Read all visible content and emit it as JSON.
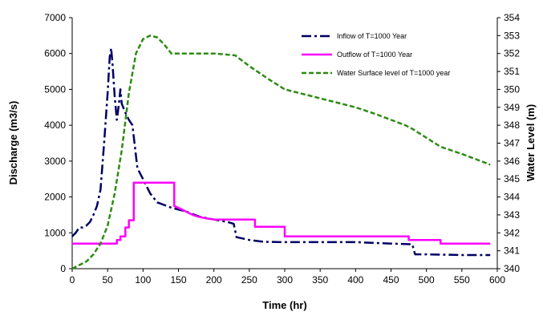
{
  "chart_data": {
    "type": "line",
    "xlabel": "Time (hr)",
    "ylabel": "Discharge (m3/s)",
    "y2label": "Water Level (m)",
    "xlim": [
      0,
      600
    ],
    "ylim": [
      0,
      7000
    ],
    "y2lim": [
      340,
      354
    ],
    "xticks": [
      "0",
      "50",
      "100",
      "150",
      "200",
      "250",
      "300",
      "350",
      "400",
      "450",
      "500",
      "550",
      "600"
    ],
    "yticks": [
      "0",
      "1000",
      "2000",
      "3000",
      "4000",
      "5000",
      "6000",
      "7000"
    ],
    "y2ticks": [
      "340",
      "341",
      "342",
      "343",
      "344",
      "345",
      "346",
      "347",
      "348",
      "349",
      "350",
      "351",
      "352",
      "353",
      "354"
    ],
    "grid": false,
    "legend_position": "top-right",
    "series": [
      {
        "name": "Inflow of T=1000 Year",
        "axis": "left",
        "color": "#000066",
        "style": "dashdot",
        "points": [
          [
            0,
            900
          ],
          [
            5,
            1000
          ],
          [
            10,
            1150
          ],
          [
            15,
            1150
          ],
          [
            20,
            1200
          ],
          [
            25,
            1300
          ],
          [
            30,
            1500
          ],
          [
            35,
            1750
          ],
          [
            40,
            2200
          ],
          [
            45,
            3500
          ],
          [
            50,
            4900
          ],
          [
            53,
            5900
          ],
          [
            55,
            6150
          ],
          [
            57,
            5700
          ],
          [
            60,
            4800
          ],
          [
            63,
            4150
          ],
          [
            66,
            4600
          ],
          [
            68,
            5000
          ],
          [
            70,
            4600
          ],
          [
            75,
            4350
          ],
          [
            80,
            4150
          ],
          [
            85,
            4000
          ],
          [
            88,
            3500
          ],
          [
            92,
            2800
          ],
          [
            100,
            2500
          ],
          [
            110,
            2100
          ],
          [
            120,
            1850
          ],
          [
            140,
            1700
          ],
          [
            160,
            1600
          ],
          [
            180,
            1450
          ],
          [
            200,
            1370
          ],
          [
            220,
            1300
          ],
          [
            228,
            1250
          ],
          [
            232,
            880
          ],
          [
            250,
            800
          ],
          [
            270,
            750
          ],
          [
            300,
            740
          ],
          [
            350,
            740
          ],
          [
            400,
            740
          ],
          [
            450,
            700
          ],
          [
            480,
            680
          ],
          [
            484,
            400
          ],
          [
            500,
            400
          ],
          [
            550,
            380
          ],
          [
            590,
            380
          ]
        ]
      },
      {
        "name": "Outflow of T=1000 Year",
        "axis": "left",
        "color": "#ff00ff",
        "style": "solid",
        "points": [
          [
            0,
            700
          ],
          [
            63,
            700
          ],
          [
            63,
            800
          ],
          [
            68,
            800
          ],
          [
            68,
            900
          ],
          [
            75,
            900
          ],
          [
            75,
            1150
          ],
          [
            80,
            1150
          ],
          [
            80,
            1350
          ],
          [
            87,
            1350
          ],
          [
            87,
            2400
          ],
          [
            144,
            2400
          ],
          [
            144,
            1750
          ],
          [
            155,
            1650
          ],
          [
            165,
            1550
          ],
          [
            170,
            1500
          ],
          [
            178,
            1450
          ],
          [
            190,
            1400
          ],
          [
            200,
            1370
          ],
          [
            258,
            1370
          ],
          [
            258,
            1170
          ],
          [
            300,
            1170
          ],
          [
            300,
            900
          ],
          [
            475,
            900
          ],
          [
            475,
            800
          ],
          [
            520,
            800
          ],
          [
            520,
            700
          ],
          [
            590,
            700
          ]
        ]
      },
      {
        "name": "Water Surface level of T=1000 year",
        "axis": "right",
        "color": "#2e8b13",
        "style": "dashed",
        "points": [
          [
            0,
            340
          ],
          [
            10,
            340.2
          ],
          [
            20,
            340.4
          ],
          [
            30,
            340.8
          ],
          [
            40,
            341.4
          ],
          [
            50,
            342.4
          ],
          [
            60,
            344.2
          ],
          [
            70,
            346.6
          ],
          [
            80,
            349.8
          ],
          [
            90,
            352
          ],
          [
            100,
            352.8
          ],
          [
            110,
            353
          ],
          [
            120,
            352.9
          ],
          [
            130,
            352.5
          ],
          [
            140,
            352
          ],
          [
            150,
            352
          ],
          [
            200,
            352
          ],
          [
            230,
            351.9
          ],
          [
            250,
            351.3
          ],
          [
            280,
            350.5
          ],
          [
            300,
            350
          ],
          [
            350,
            349.5
          ],
          [
            400,
            349
          ],
          [
            430,
            348.6
          ],
          [
            470,
            348
          ],
          [
            480,
            347.8
          ],
          [
            500,
            347.3
          ],
          [
            520,
            346.8
          ],
          [
            550,
            346.4
          ],
          [
            590,
            345.8
          ]
        ]
      }
    ]
  }
}
